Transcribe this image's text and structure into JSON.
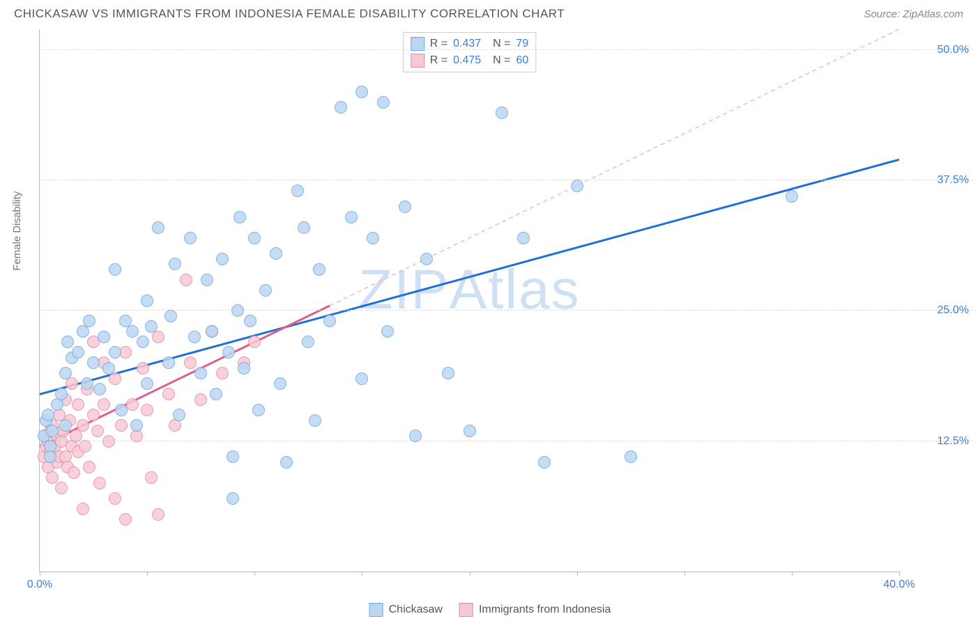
{
  "header": {
    "title": "CHICKASAW VS IMMIGRANTS FROM INDONESIA FEMALE DISABILITY CORRELATION CHART",
    "source": "Source: ZipAtlas.com"
  },
  "ylabel": "Female Disability",
  "watermark": {
    "pre": "ZIP",
    "post": "Atlas"
  },
  "chart": {
    "type": "scatter",
    "xlim": [
      0,
      40
    ],
    "ylim": [
      0,
      52
    ],
    "background_color": "#ffffff",
    "grid_color": "#dddddd",
    "axis_color": "#bbbbbb",
    "yticks": [
      {
        "v": 12.5,
        "label": "12.5%"
      },
      {
        "v": 25.0,
        "label": "25.0%"
      },
      {
        "v": 37.5,
        "label": "37.5%"
      },
      {
        "v": 50.0,
        "label": "50.0%"
      }
    ],
    "xticks_minor": [
      0,
      5,
      10,
      15,
      20,
      25,
      30,
      35,
      40
    ],
    "xticks": [
      {
        "v": 0,
        "label": "0.0%"
      },
      {
        "v": 40,
        "label": "40.0%"
      }
    ],
    "tick_label_color": "#3b7dd8",
    "point_radius": 9,
    "series": [
      {
        "name": "Chickasaw",
        "color_fill": "#bcd6f2",
        "color_stroke": "#6fa8e2",
        "legend_swatch_fill": "#bcd6f2",
        "legend_swatch_stroke": "#6fa8e2",
        "R": "0.437",
        "N": "79",
        "trend": {
          "x1": 0,
          "y1": 17.0,
          "x2": 40,
          "y2": 39.5,
          "stroke": "#1f6fd4",
          "width": 3,
          "dash": ""
        },
        "points": [
          [
            0.2,
            13.0
          ],
          [
            0.3,
            14.5
          ],
          [
            0.4,
            15.0
          ],
          [
            0.5,
            12.0
          ],
          [
            0.6,
            13.5
          ],
          [
            0.8,
            16.0
          ],
          [
            0.5,
            11.0
          ],
          [
            1.0,
            17.0
          ],
          [
            1.2,
            19.0
          ],
          [
            1.3,
            22.0
          ],
          [
            1.5,
            20.5
          ],
          [
            1.8,
            21.0
          ],
          [
            2.0,
            23.0
          ],
          [
            1.2,
            14.0
          ],
          [
            2.2,
            18.0
          ],
          [
            2.3,
            24.0
          ],
          [
            2.5,
            20.0
          ],
          [
            2.8,
            17.5
          ],
          [
            3.0,
            22.5
          ],
          [
            3.2,
            19.5
          ],
          [
            3.5,
            29.0
          ],
          [
            3.5,
            21.0
          ],
          [
            3.8,
            15.5
          ],
          [
            4.0,
            24.0
          ],
          [
            4.3,
            23.0
          ],
          [
            4.5,
            14.0
          ],
          [
            4.8,
            22.0
          ],
          [
            5.0,
            18.0
          ],
          [
            5.0,
            26.0
          ],
          [
            5.2,
            23.5
          ],
          [
            5.5,
            33.0
          ],
          [
            6.0,
            20.0
          ],
          [
            6.1,
            24.5
          ],
          [
            6.3,
            29.5
          ],
          [
            6.5,
            15.0
          ],
          [
            7.0,
            32.0
          ],
          [
            7.2,
            22.5
          ],
          [
            7.5,
            19.0
          ],
          [
            7.8,
            28.0
          ],
          [
            8.0,
            23.0
          ],
          [
            8.2,
            17.0
          ],
          [
            8.5,
            30.0
          ],
          [
            8.8,
            21.0
          ],
          [
            9.0,
            11.0
          ],
          [
            9.2,
            25.0
          ],
          [
            9.3,
            34.0
          ],
          [
            9.5,
            19.5
          ],
          [
            9.8,
            24.0
          ],
          [
            10.0,
            32.0
          ],
          [
            10.2,
            15.5
          ],
          [
            10.5,
            27.0
          ],
          [
            11.0,
            30.5
          ],
          [
            11.2,
            18.0
          ],
          [
            11.5,
            10.5
          ],
          [
            12.0,
            36.5
          ],
          [
            12.3,
            33.0
          ],
          [
            12.5,
            22.0
          ],
          [
            12.8,
            14.5
          ],
          [
            13.0,
            29.0
          ],
          [
            13.5,
            24.0
          ],
          [
            14.0,
            44.5
          ],
          [
            14.5,
            34.0
          ],
          [
            15.0,
            18.5
          ],
          [
            15.0,
            46.0
          ],
          [
            15.5,
            32.0
          ],
          [
            16.0,
            45.0
          ],
          [
            16.2,
            23.0
          ],
          [
            17.0,
            35.0
          ],
          [
            17.5,
            13.0
          ],
          [
            18.0,
            30.0
          ],
          [
            19.0,
            19.0
          ],
          [
            20.0,
            13.5
          ],
          [
            21.5,
            44.0
          ],
          [
            22.5,
            32.0
          ],
          [
            23.5,
            10.5
          ],
          [
            25.0,
            37.0
          ],
          [
            27.5,
            11.0
          ],
          [
            35.0,
            36.0
          ],
          [
            9.0,
            7.0
          ]
        ]
      },
      {
        "name": "Immigrants from Indonesia",
        "color_fill": "#f7c9d4",
        "color_stroke": "#e48ba3",
        "legend_swatch_fill": "#f7c9d4",
        "legend_swatch_stroke": "#e48ba3",
        "R": "0.475",
        "N": "60",
        "trend": {
          "x1": 0,
          "y1": 12.0,
          "x2": 13.5,
          "y2": 25.5,
          "stroke": "#e05e84",
          "width": 3,
          "dash": ""
        },
        "trend_ext": {
          "x1": 13.5,
          "y1": 25.5,
          "x2": 40,
          "y2": 52.0,
          "stroke": "#f3b6c6",
          "width": 1.5,
          "dash": "6,5"
        },
        "points": [
          [
            0.2,
            11.0
          ],
          [
            0.3,
            12.0
          ],
          [
            0.3,
            13.0
          ],
          [
            0.4,
            10.0
          ],
          [
            0.4,
            12.5
          ],
          [
            0.5,
            11.5
          ],
          [
            0.5,
            13.5
          ],
          [
            0.6,
            9.0
          ],
          [
            0.6,
            14.0
          ],
          [
            0.7,
            12.0
          ],
          [
            0.8,
            10.5
          ],
          [
            0.8,
            13.0
          ],
          [
            0.9,
            11.0
          ],
          [
            0.9,
            15.0
          ],
          [
            1.0,
            12.5
          ],
          [
            1.0,
            8.0
          ],
          [
            1.1,
            13.5
          ],
          [
            1.2,
            11.0
          ],
          [
            1.2,
            16.5
          ],
          [
            1.3,
            10.0
          ],
          [
            1.4,
            14.5
          ],
          [
            1.5,
            12.0
          ],
          [
            1.5,
            18.0
          ],
          [
            1.6,
            9.5
          ],
          [
            1.7,
            13.0
          ],
          [
            1.8,
            16.0
          ],
          [
            1.8,
            11.5
          ],
          [
            2.0,
            14.0
          ],
          [
            2.0,
            6.0
          ],
          [
            2.1,
            12.0
          ],
          [
            2.2,
            17.5
          ],
          [
            2.3,
            10.0
          ],
          [
            2.5,
            15.0
          ],
          [
            2.5,
            22.0
          ],
          [
            2.7,
            13.5
          ],
          [
            2.8,
            8.5
          ],
          [
            3.0,
            16.0
          ],
          [
            3.0,
            20.0
          ],
          [
            3.2,
            12.5
          ],
          [
            3.5,
            18.5
          ],
          [
            3.5,
            7.0
          ],
          [
            3.8,
            14.0
          ],
          [
            4.0,
            5.0
          ],
          [
            4.0,
            21.0
          ],
          [
            4.3,
            16.0
          ],
          [
            4.5,
            13.0
          ],
          [
            4.8,
            19.5
          ],
          [
            5.0,
            15.5
          ],
          [
            5.2,
            9.0
          ],
          [
            5.5,
            22.5
          ],
          [
            5.5,
            5.5
          ],
          [
            6.0,
            17.0
          ],
          [
            6.3,
            14.0
          ],
          [
            6.8,
            28.0
          ],
          [
            7.0,
            20.0
          ],
          [
            7.5,
            16.5
          ],
          [
            8.0,
            23.0
          ],
          [
            8.5,
            19.0
          ],
          [
            9.5,
            20.0
          ],
          [
            10.0,
            22.0
          ]
        ]
      }
    ]
  },
  "legend_bottom": [
    {
      "label": "Chickasaw",
      "fill": "#bcd6f2",
      "stroke": "#6fa8e2"
    },
    {
      "label": "Immigrants from Indonesia",
      "fill": "#f7c9d4",
      "stroke": "#e48ba3"
    }
  ]
}
